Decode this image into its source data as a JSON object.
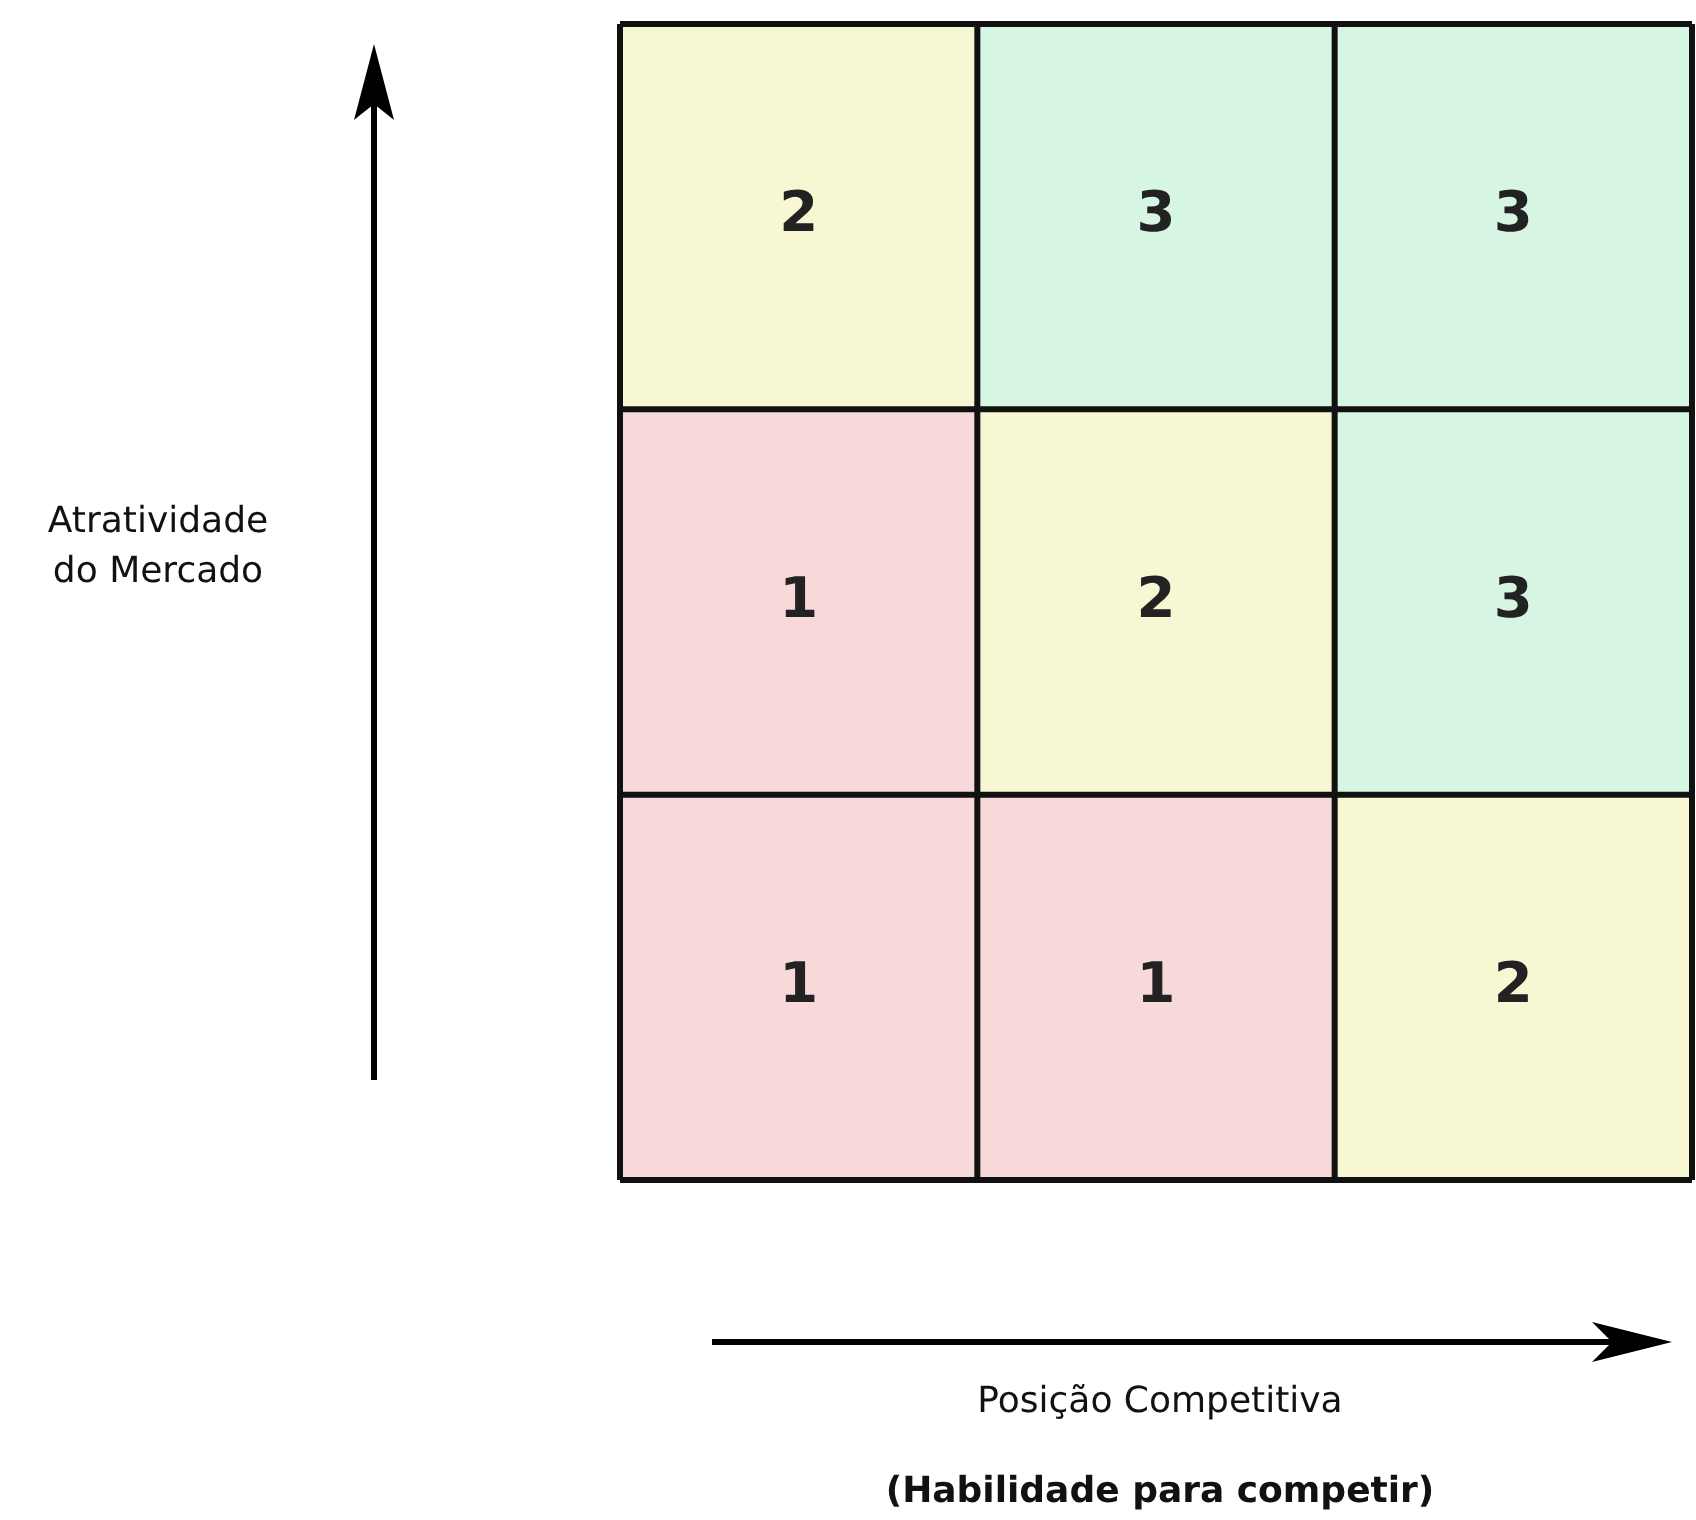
{
  "chart_data": {
    "type": "heatmap",
    "annotations": [
      "Atratividade do Mercado",
      "Posição Competitiva",
      "(Habilidade para competir)"
    ],
    "categories": [
      null,
      null,
      null
    ],
    "y_categories": [
      null,
      null,
      null
    ],
    "data_labels": true,
    "cells": [
      [
        2,
        3,
        3
      ],
      [
        1,
        2,
        3
      ],
      [
        1,
        1,
        2
      ]
    ],
    "colors": [
      [
        "#f7f7d3",
        "#d6f5e3",
        "#d6f5e3"
      ],
      [
        "#f7d9d9",
        "#f7f7d3",
        "#d6f5e3"
      ],
      [
        "#f7d9d9",
        "#f7d9d9",
        "#f7f7d3"
      ]
    ]
  }
}
